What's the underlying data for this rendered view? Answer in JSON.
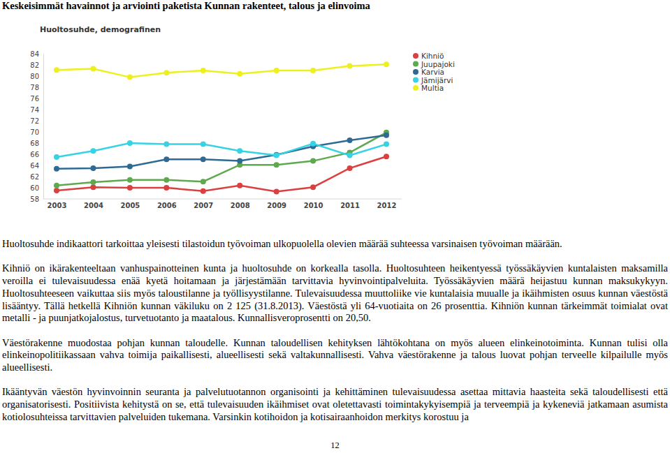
{
  "header": {
    "title": "Keskeisimmät havainnot ja arviointi paketista Kunnan rakenteet, talous ja elinvoima"
  },
  "chart_data": {
    "type": "line",
    "title": "Huoltosuhde, demografinen",
    "categories": [
      "2003",
      "2004",
      "2005",
      "2006",
      "2007",
      "2008",
      "2009",
      "2010",
      "2011",
      "2012"
    ],
    "series": [
      {
        "name": "Kihniö",
        "color": "#d9403f",
        "values": [
          59.5,
          60.1,
          60.0,
          60.0,
          59.4,
          60.4,
          59.3,
          60.1,
          63.5,
          65.6
        ]
      },
      {
        "name": "Juupajoki",
        "color": "#5ea94e",
        "values": [
          60.4,
          61.0,
          61.4,
          61.4,
          61.1,
          64.1,
          64.1,
          64.8,
          66.3,
          69.9
        ]
      },
      {
        "name": "Karvia",
        "color": "#2e6a94",
        "values": [
          63.4,
          63.5,
          63.8,
          65.1,
          65.1,
          64.8,
          65.9,
          67.4,
          68.5,
          69.4
        ]
      },
      {
        "name": "Jämijärvi",
        "color": "#35d3e4",
        "values": [
          65.5,
          66.6,
          68.0,
          67.8,
          67.8,
          66.6,
          65.8,
          67.9,
          65.8,
          67.8
        ]
      },
      {
        "name": "Multia",
        "color": "#eef01e",
        "values": [
          81.1,
          81.3,
          79.8,
          80.6,
          81.0,
          80.4,
          81.0,
          81.0,
          81.8,
          82.1
        ]
      }
    ],
    "ylim": [
      58,
      84
    ],
    "yticks": [
      58,
      60,
      62,
      64,
      66,
      68,
      70,
      72,
      74,
      76,
      78,
      80,
      82,
      84
    ],
    "grid": false,
    "legend": "right",
    "marker": "circle"
  },
  "paragraphs": [
    "Huoltosuhde indikaattori tarkoittaa yleisesti tilastoidun työvoiman ulkopuolella olevien määrää suhteessa varsinaisen työvoiman määrään.",
    "Kihniö on ikärakenteeltaan vanhuspainotteinen kunta ja huoltosuhde on korkealla tasolla. Huoltosuhteen heikentyessä työssäkäyvien kuntalaisten maksamilla veroilla ei tulevaisuudessa enää kyetä hoitamaan ja järjestämään tarvittavia hyvinvointipalveluita. Työssäkäyvien määrä heijastuu kunnan maksukykyyn. Huoltosuhteeseen vaikuttaa siis myös taloustilanne ja työllisyystilanne. Tulevaisuudessa muuttoliike vie kuntalaisia muualle ja ikäihmisten osuus kunnan väestöstä lisääntyy. Tällä hetkellä Kihniön kunnan väkiluku on 2 125 (31.8.2013). Väestöstä yli 64-vuotiaita on 26 prosenttia. Kihniön kunnan tärkeimmät toimialat ovat metalli - ja puunjatkojalostus, turvetuotanto ja maatalous. Kunnallisveroprosentti on 20,50.",
    "Väestörakenne muodostaa pohjan kunnan taloudelle. Kunnan taloudellisen kehityksen lähtökohtana on myös alueen elinkeinotoiminta. Kunnan tulisi olla elinkeinopolitiikassaan vahva toimija paikallisesti, alueellisesti sekä valtakunnallisesti. Vahva väestörakenne ja talous luovat pohjan terveelle kilpailulle myös alueellisesti.",
    "Ikääntyvän väestön hyvinvoinnin seuranta ja palvelutuotannon organisointi ja kehittäminen tulevaisuudessa asettaa mittavia haasteita sekä taloudellisesti että organisatorisesti. Positiivista kehitystä on se, että tulevaisuuden ikäihmiset ovat oletettavasti toimintakykyisempiä ja terveempiä ja kykeneviä jatkamaan asumista kotiolosuhteissa tarvittavien palveluiden tukemana. Varsinkin kotihoidon ja kotisairaanhoidon merkitys korostuu ja"
  ],
  "page_number": "12"
}
